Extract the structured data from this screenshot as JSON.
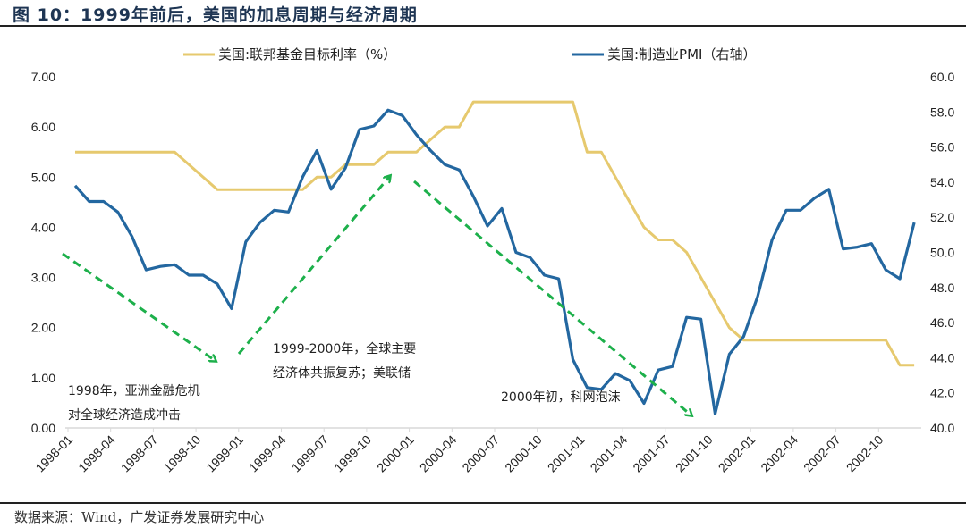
{
  "title": "图 10：1999年前后，美国的加息周期与经济周期",
  "source": "数据来源：Wind，广发证券发展研究中心",
  "colors": {
    "fed_rate": "#e6c96e",
    "pmi": "#2367a0",
    "arrow": "#1db04b",
    "title": "#1e3553"
  },
  "chart_data": {
    "type": "line",
    "x_start": "1998-01",
    "x_tick_labels": [
      "1998-01",
      "1998-04",
      "1998-07",
      "1998-10",
      "1999-01",
      "1999-04",
      "1999-07",
      "1999-10",
      "2000-01",
      "2000-04",
      "2000-07",
      "2000-10",
      "2001-01",
      "2001-04",
      "2001-07",
      "2001-10",
      "2002-01",
      "2002-04",
      "2002-07",
      "2002-10"
    ],
    "x": [
      "1998-01",
      "1998-02",
      "1998-03",
      "1998-04",
      "1998-05",
      "1998-06",
      "1998-07",
      "1998-08",
      "1998-09",
      "1998-10",
      "1998-11",
      "1998-12",
      "1999-01",
      "1999-02",
      "1999-03",
      "1999-04",
      "1999-05",
      "1999-06",
      "1999-07",
      "1999-08",
      "1999-09",
      "1999-10",
      "1999-11",
      "1999-12",
      "2000-01",
      "2000-02",
      "2000-03",
      "2000-04",
      "2000-05",
      "2000-06",
      "2000-07",
      "2000-08",
      "2000-09",
      "2000-10",
      "2000-11",
      "2000-12",
      "2001-01",
      "2001-02",
      "2001-03",
      "2001-04",
      "2001-05",
      "2001-06",
      "2001-07",
      "2001-08",
      "2001-09",
      "2001-10",
      "2001-11",
      "2001-12",
      "2002-01",
      "2002-02",
      "2002-03",
      "2002-04",
      "2002-05",
      "2002-06",
      "2002-07",
      "2002-08",
      "2002-09",
      "2002-10",
      "2002-11",
      "2002-12"
    ],
    "y_left": {
      "ylim": [
        0,
        7
      ],
      "ticks": [
        "0.00",
        "1.00",
        "2.00",
        "3.00",
        "4.00",
        "5.00",
        "6.00",
        "7.00"
      ]
    },
    "y_right": {
      "ylim": [
        40,
        60
      ],
      "ticks": [
        "40.0",
        "42.0",
        "44.0",
        "46.0",
        "48.0",
        "50.0",
        "52.0",
        "54.0",
        "56.0",
        "58.0",
        "60.0"
      ]
    },
    "legend_position": "top",
    "series": [
      {
        "name": "美国:联邦基金目标利率（%）",
        "axis": "left",
        "values": [
          5.5,
          5.5,
          5.5,
          5.5,
          5.5,
          5.5,
          5.5,
          5.5,
          5.25,
          5.0,
          4.75,
          4.75,
          4.75,
          4.75,
          4.75,
          4.75,
          4.75,
          5.0,
          5.0,
          5.25,
          5.25,
          5.25,
          5.5,
          5.5,
          5.5,
          5.75,
          6.0,
          6.0,
          6.5,
          6.5,
          6.5,
          6.5,
          6.5,
          6.5,
          6.5,
          6.5,
          5.5,
          5.5,
          5.0,
          4.5,
          4.0,
          3.75,
          3.75,
          3.5,
          3.0,
          2.5,
          2.0,
          1.75,
          1.75,
          1.75,
          1.75,
          1.75,
          1.75,
          1.75,
          1.75,
          1.75,
          1.75,
          1.75,
          1.25,
          1.25
        ]
      },
      {
        "name": "美国:制造业PMI（右轴）",
        "axis": "right",
        "values": [
          53.8,
          52.9,
          52.9,
          52.3,
          50.9,
          49.0,
          49.2,
          49.3,
          48.7,
          48.7,
          48.2,
          46.8,
          50.6,
          51.7,
          52.4,
          52.3,
          54.3,
          55.8,
          53.6,
          54.8,
          57.0,
          57.2,
          58.1,
          57.8,
          56.7,
          55.8,
          55.0,
          54.7,
          53.2,
          51.5,
          52.5,
          50.0,
          49.7,
          48.7,
          48.5,
          43.9,
          42.3,
          42.2,
          43.1,
          42.7,
          41.4,
          43.3,
          43.5,
          46.3,
          46.2,
          40.8,
          44.2,
          45.2,
          47.5,
          50.7,
          52.4,
          52.4,
          53.1,
          53.6,
          50.2,
          50.3,
          50.5,
          49.0,
          48.5,
          51.7
        ]
      }
    ],
    "annotations": [
      {
        "lines": [
          "1998年，亚洲金融危机",
          "对全球经济造成冲击"
        ]
      },
      {
        "lines": [
          "1999-2000年，全球主要",
          "经济体共振复苏；美联储"
        ]
      },
      {
        "lines": [
          "2000年初，科网泡沫"
        ]
      }
    ],
    "grid": false
  }
}
